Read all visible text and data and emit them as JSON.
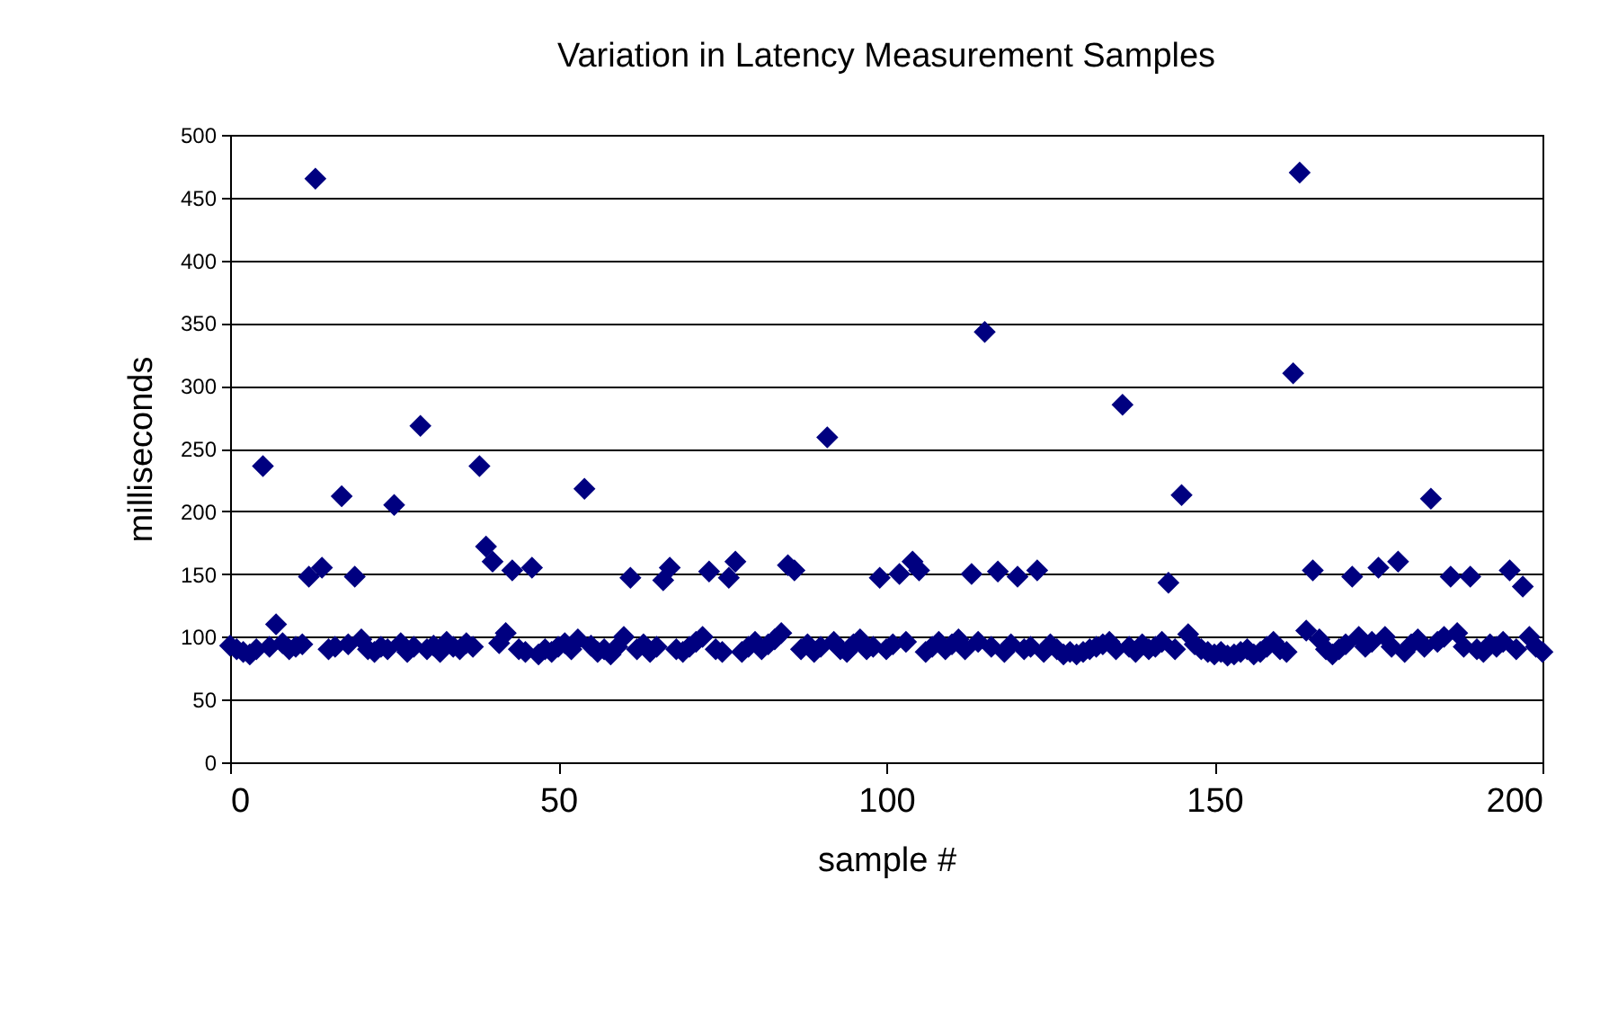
{
  "chart_data": {
    "type": "scatter",
    "title": "Variation in Latency Measurement Samples",
    "xlabel": "sample #",
    "ylabel": "milliseconds",
    "x": [
      0,
      1,
      2,
      3,
      4,
      5,
      6,
      7,
      8,
      9,
      10,
      11,
      12,
      13,
      14,
      15,
      16,
      17,
      18,
      19,
      20,
      21,
      22,
      23,
      24,
      25,
      26,
      27,
      28,
      29,
      30,
      31,
      32,
      33,
      34,
      35,
      36,
      37,
      38,
      39,
      40,
      41,
      42,
      43,
      44,
      45,
      46,
      47,
      48,
      49,
      50,
      51,
      52,
      53,
      54,
      55,
      56,
      57,
      58,
      59,
      60,
      61,
      62,
      63,
      64,
      65,
      66,
      67,
      68,
      69,
      70,
      71,
      72,
      73,
      74,
      75,
      76,
      77,
      78,
      79,
      80,
      81,
      82,
      83,
      84,
      85,
      86,
      87,
      88,
      89,
      90,
      91,
      92,
      93,
      94,
      95,
      96,
      97,
      98,
      99,
      100,
      101,
      102,
      103,
      104,
      105,
      106,
      107,
      108,
      109,
      110,
      111,
      112,
      113,
      114,
      115,
      116,
      117,
      118,
      119,
      120,
      121,
      122,
      123,
      124,
      125,
      126,
      127,
      128,
      129,
      130,
      131,
      132,
      133,
      134,
      135,
      136,
      137,
      138,
      139,
      140,
      141,
      142,
      143,
      144,
      145,
      146,
      147,
      148,
      149,
      150,
      151,
      152,
      153,
      154,
      155,
      156,
      157,
      158,
      159,
      160,
      161,
      162,
      163,
      164,
      165,
      166,
      167,
      168,
      169,
      170,
      171,
      172,
      173,
      174,
      175,
      176,
      177,
      178,
      179,
      180,
      181,
      182,
      183,
      184,
      185,
      186,
      187,
      188,
      189,
      190,
      191,
      192,
      193,
      194,
      195,
      196,
      197,
      198,
      199,
      200
    ],
    "series": [
      {
        "color": "#000080",
        "values": [
          93,
          90,
          88,
          86,
          90,
          236,
          92,
          110,
          95,
          90,
          92,
          94,
          148,
          465,
          155,
          90,
          92,
          212,
          94,
          148,
          98,
          90,
          88,
          92,
          90,
          205,
          95,
          88,
          92,
          268,
          90,
          93,
          88,
          96,
          92,
          90,
          95,
          92,
          236,
          172,
          160,
          95,
          103,
          153,
          90,
          88,
          155,
          86,
          90,
          88,
          92,
          95,
          90,
          98,
          218,
          93,
          88,
          90,
          86,
          92,
          100,
          147,
          90,
          94,
          88,
          92,
          145,
          155,
          90,
          88,
          92,
          96,
          100,
          152,
          90,
          88,
          147,
          160,
          88,
          92,
          96,
          90,
          94,
          98,
          103,
          157,
          153,
          90,
          94,
          88,
          92,
          259,
          96,
          90,
          88,
          94,
          98,
          90,
          92,
          147,
          90,
          94,
          150,
          96,
          160,
          153,
          88,
          92,
          96,
          90,
          94,
          98,
          90,
          150,
          96,
          343,
          92,
          152,
          88,
          94,
          148,
          90,
          92,
          153,
          88,
          94,
          90,
          86,
          88,
          86,
          88,
          90,
          92,
          94,
          96,
          90,
          285,
          92,
          88,
          94,
          90,
          92,
          96,
          143,
          90,
          213,
          102,
          94,
          90,
          88,
          86,
          88,
          85,
          86,
          88,
          90,
          86,
          88,
          92,
          96,
          90,
          88,
          310,
          470,
          105,
          153,
          98,
          90,
          86,
          90,
          94,
          148,
          100,
          92,
          96,
          155,
          100,
          92,
          160,
          88,
          94,
          98,
          92,
          210,
          96,
          100,
          148,
          103,
          92,
          148,
          90,
          88,
          94,
          92,
          96,
          153,
          90,
          140,
          100,
          92,
          88
        ]
      }
    ],
    "xlim": [
      0,
      200
    ],
    "xticks": [
      0,
      50,
      100,
      150,
      200
    ],
    "ylim": [
      0,
      500
    ],
    "yticks": [
      0,
      50,
      100,
      150,
      200,
      250,
      300,
      350,
      400,
      450,
      500
    ],
    "grid": "y",
    "marker": "diamond"
  }
}
